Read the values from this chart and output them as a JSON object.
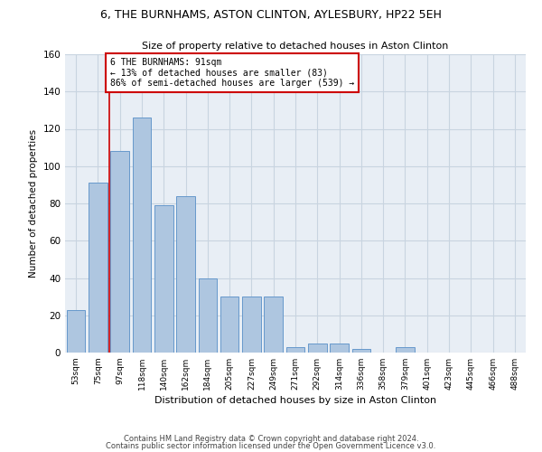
{
  "title_line1": "6, THE BURNHAMS, ASTON CLINTON, AYLESBURY, HP22 5EH",
  "title_line2": "Size of property relative to detached houses in Aston Clinton",
  "xlabel": "Distribution of detached houses by size in Aston Clinton",
  "ylabel": "Number of detached properties",
  "categories": [
    "53sqm",
    "75sqm",
    "97sqm",
    "118sqm",
    "140sqm",
    "162sqm",
    "184sqm",
    "205sqm",
    "227sqm",
    "249sqm",
    "271sqm",
    "292sqm",
    "314sqm",
    "336sqm",
    "358sqm",
    "379sqm",
    "401sqm",
    "423sqm",
    "445sqm",
    "466sqm",
    "488sqm"
  ],
  "values": [
    23,
    91,
    108,
    126,
    79,
    84,
    40,
    30,
    30,
    30,
    3,
    5,
    5,
    2,
    0,
    3,
    0,
    0,
    0,
    0,
    0
  ],
  "bar_color": "#aec6e0",
  "bar_edge_color": "#6699cc",
  "annotation_text": "6 THE BURNHAMS: 91sqm\n← 13% of detached houses are smaller (83)\n86% of semi-detached houses are larger (539) →",
  "annotation_box_color": "#ffffff",
  "annotation_border_color": "#cc0000",
  "vline_color": "#cc0000",
  "vline_x": 1.5,
  "ylim": [
    0,
    160
  ],
  "yticks": [
    0,
    20,
    40,
    60,
    80,
    100,
    120,
    140,
    160
  ],
  "grid_color": "#c8d4e0",
  "background_color": "#e8eef5",
  "footer_line1": "Contains HM Land Registry data © Crown copyright and database right 2024.",
  "footer_line2": "Contains public sector information licensed under the Open Government Licence v3.0."
}
